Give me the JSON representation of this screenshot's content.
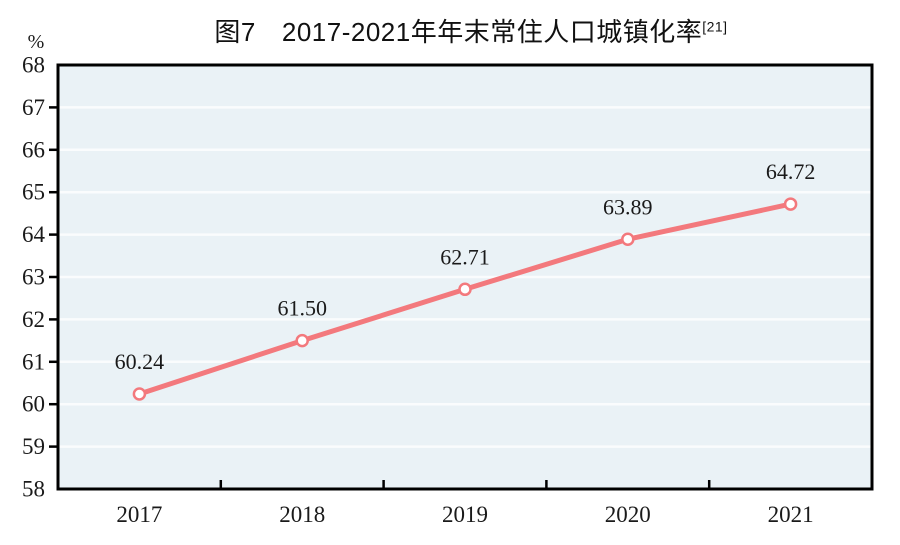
{
  "figure": {
    "title_prefix": "图7",
    "title_main": "2017-2021年年末常住人口城镇化率",
    "title_superscript": "[21]"
  },
  "chart_data": {
    "type": "line",
    "title": "图7　2017-2021年年末常住人口城镇化率[21]",
    "categories": [
      "2017",
      "2018",
      "2019",
      "2020",
      "2021"
    ],
    "values": [
      60.24,
      61.5,
      62.71,
      63.89,
      64.72
    ],
    "data_labels": [
      "60.24",
      "61.50",
      "62.71",
      "63.89",
      "64.72"
    ],
    "unit_label": "%",
    "ylabel": "%",
    "xlabel": "",
    "ylim": [
      58,
      68
    ],
    "yticks": [
      58,
      59,
      60,
      61,
      62,
      63,
      64,
      65,
      66,
      67,
      68
    ],
    "grid": true,
    "legend": "none",
    "colors": {
      "line": "#f3797d",
      "marker_fill": "#ffffff",
      "marker_stroke": "#f3797d",
      "plot_background": "#eaf2f6",
      "gridline": "#fafcfd",
      "axis_frame": "#000000",
      "text": "#1a1a1a"
    }
  }
}
